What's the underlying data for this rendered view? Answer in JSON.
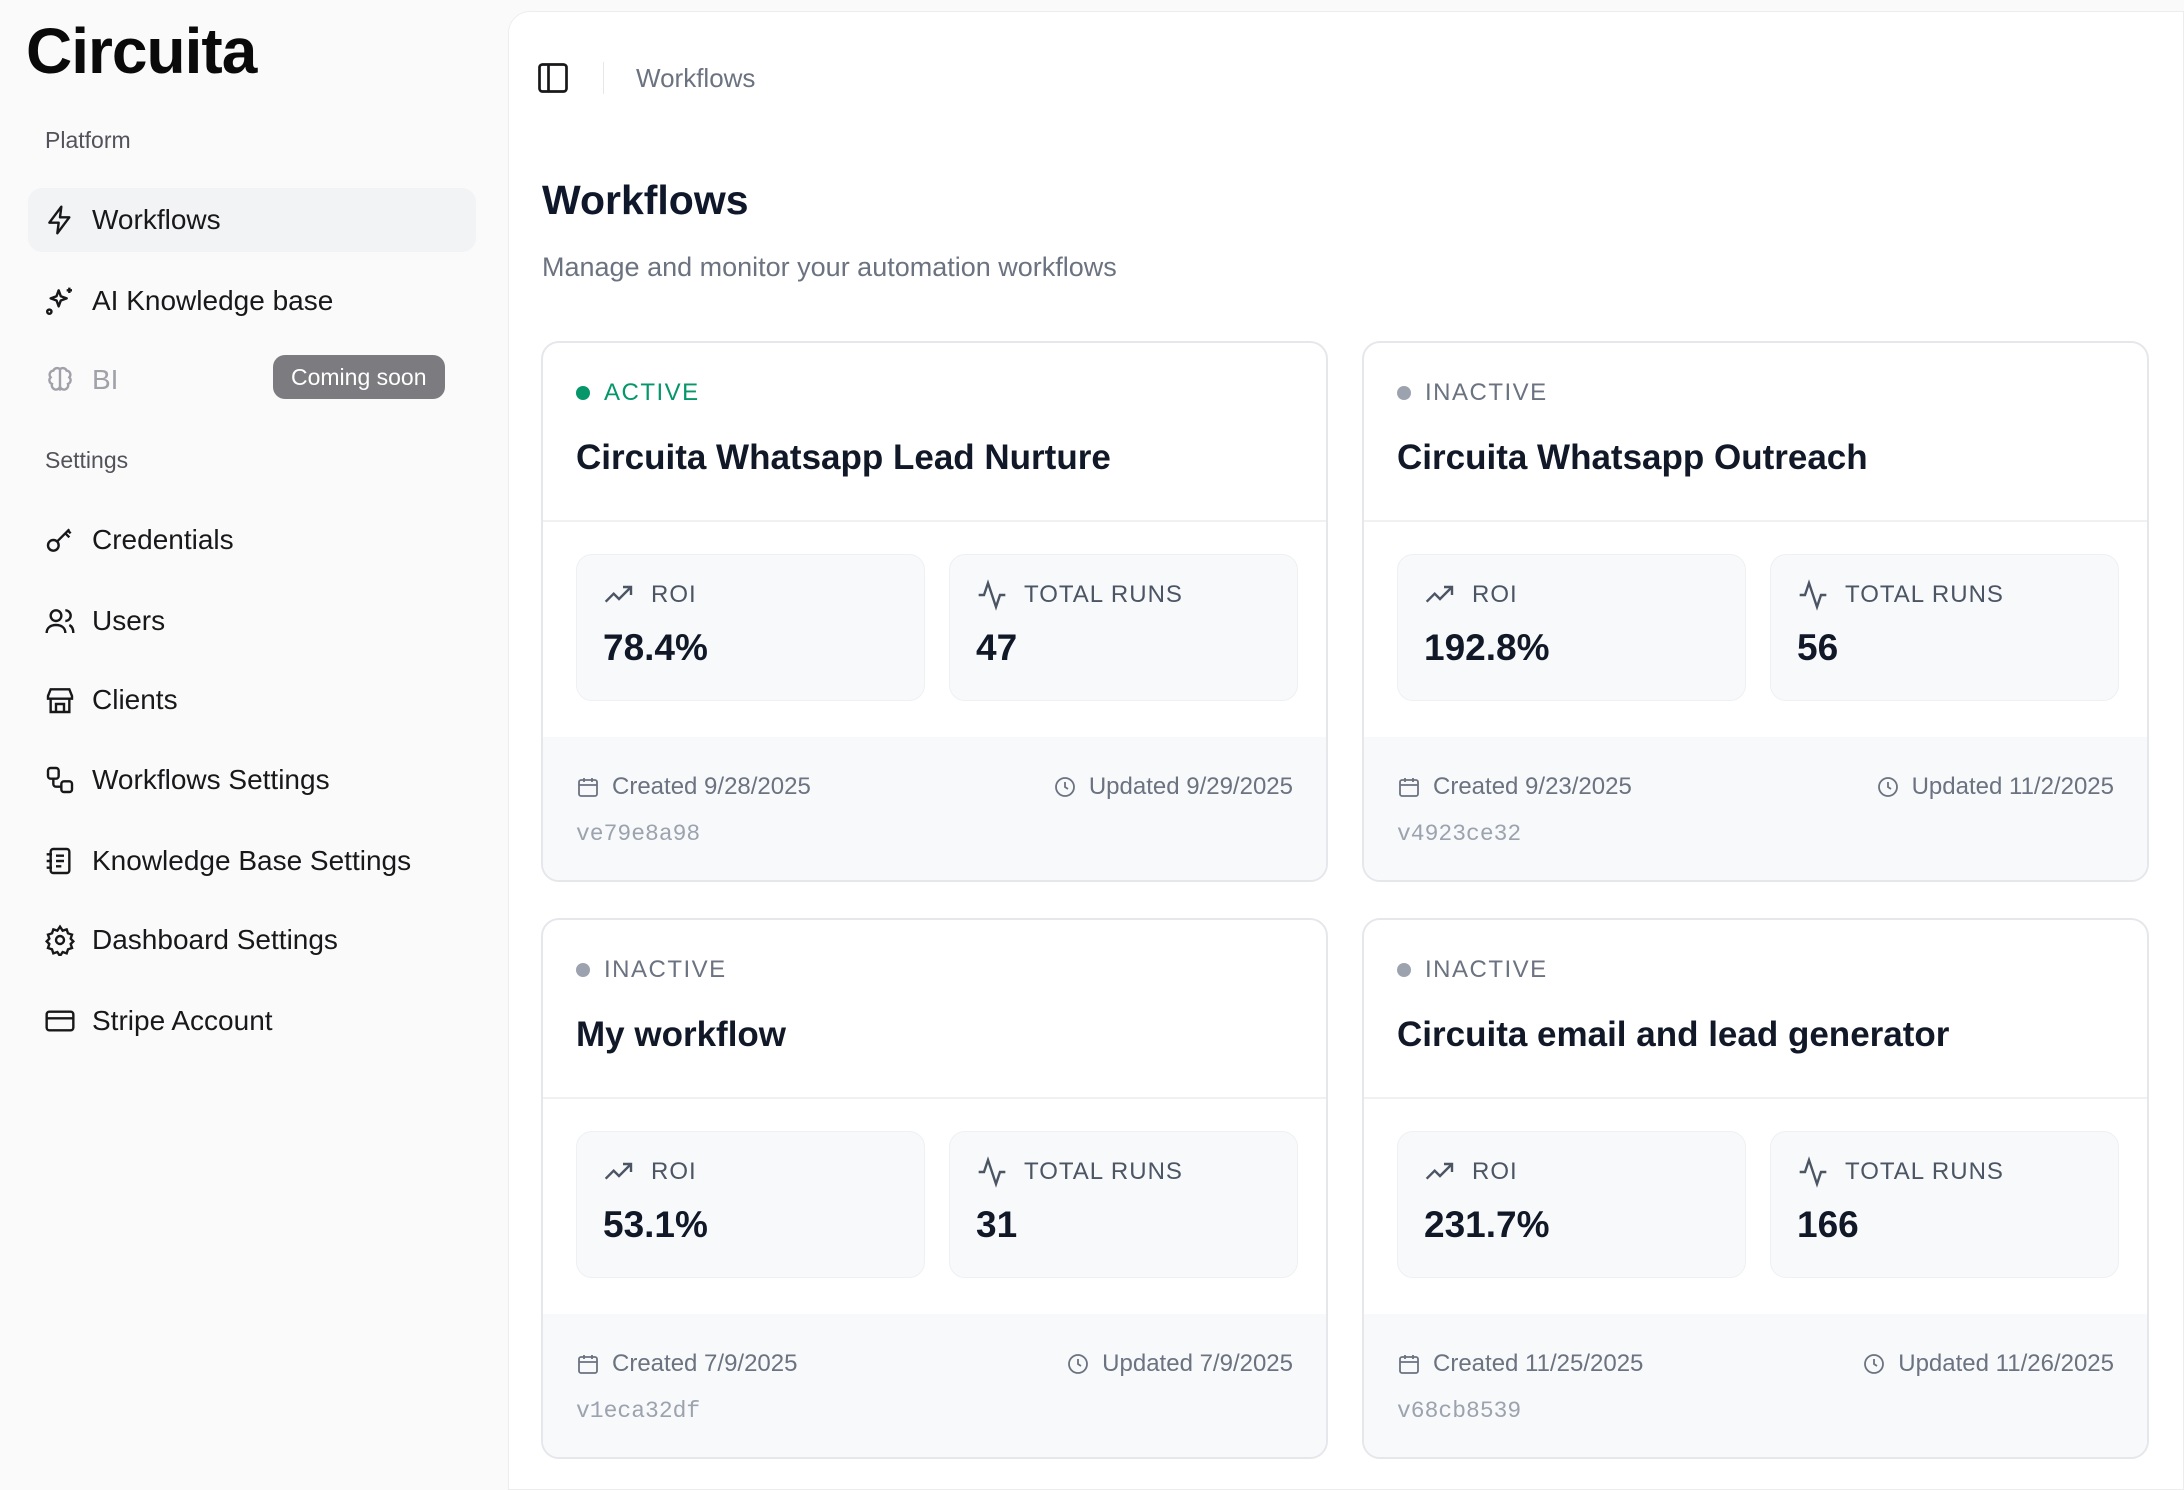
{
  "app": {
    "logo": "Circuita"
  },
  "sidebar": {
    "platform_label": "Platform",
    "settings_label": "Settings",
    "platform_items": [
      {
        "label": "Workflows",
        "icon": "zap-icon",
        "active": true
      },
      {
        "label": "AI Knowledge base",
        "icon": "sparkles-icon"
      },
      {
        "label": "BI",
        "icon": "brain-icon",
        "disabled": true,
        "badge": "Coming soon"
      }
    ],
    "settings_items": [
      {
        "label": "Credentials",
        "icon": "key-icon"
      },
      {
        "label": "Users",
        "icon": "users-icon"
      },
      {
        "label": "Clients",
        "icon": "store-icon"
      },
      {
        "label": "Workflows Settings",
        "icon": "workflow-icon"
      },
      {
        "label": "Knowledge Base Settings",
        "icon": "notebook-icon"
      },
      {
        "label": "Dashboard Settings",
        "icon": "gear-icon"
      },
      {
        "label": "Stripe Account",
        "icon": "credit-card-icon"
      }
    ]
  },
  "header": {
    "breadcrumb": "Workflows"
  },
  "page": {
    "title": "Workflows",
    "subtitle": "Manage and monitor your automation workflows"
  },
  "labels": {
    "roi": "ROI",
    "total_runs": "TOTAL RUNS"
  },
  "colors": {
    "active": "#059669",
    "inactive": "#9ca3af",
    "badge": "#7b7b80"
  },
  "workflows": [
    {
      "status": "ACTIVE",
      "name": "Circuita Whatsapp Lead Nurture",
      "roi": "78.4%",
      "runs": "47",
      "created": "Created 9/28/2025",
      "updated": "Updated 9/29/2025",
      "version": "ve79e8a98"
    },
    {
      "status": "INACTIVE",
      "name": "Circuita Whatsapp Outreach",
      "roi": "192.8%",
      "runs": "56",
      "created": "Created 9/23/2025",
      "updated": "Updated 11/2/2025",
      "version": "v4923ce32"
    },
    {
      "status": "INACTIVE",
      "name": "My workflow",
      "roi": "53.1%",
      "runs": "31",
      "created": "Created 7/9/2025",
      "updated": "Updated 7/9/2025",
      "version": "v1eca32df"
    },
    {
      "status": "INACTIVE",
      "name": "Circuita email and lead generator",
      "roi": "231.7%",
      "runs": "166",
      "created": "Created 11/25/2025",
      "updated": "Updated 11/26/2025",
      "version": "v68cb8539"
    }
  ]
}
